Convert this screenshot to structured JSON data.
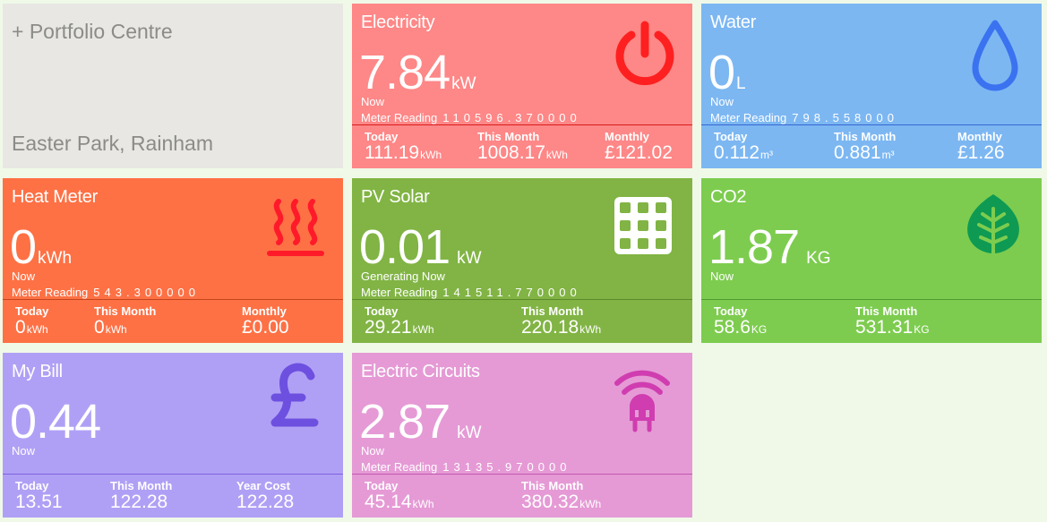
{
  "portfolio": {
    "title": "+ Portfolio Centre",
    "site": "Easter Park, Rainham"
  },
  "electricity": {
    "title": "Electricity",
    "value": "7.84",
    "unit": "kW",
    "sub": "Now",
    "meter_label": "Meter Reading",
    "meter_value": "110596.370000",
    "today_label": "Today",
    "today_value": "111.19",
    "today_unit": "kWh",
    "month_label": "This Month",
    "month_value": "1008.17",
    "month_unit": "kWh",
    "third_label": "Monthly",
    "third_value": "£121.02",
    "icon": "power-icon",
    "accent": "#fe2020"
  },
  "water": {
    "title": "Water",
    "value": "0",
    "unit": "L",
    "sub": "Now",
    "meter_label": "Meter Reading",
    "meter_value": "798.558000",
    "today_label": "Today",
    "today_value": "0.112",
    "today_unit": "m³",
    "month_label": "This Month",
    "month_value": "0.881",
    "month_unit": "m³",
    "third_label": "Monthly",
    "third_value": "£1.26",
    "icon": "water-drop-icon",
    "accent": "#3a72f0"
  },
  "heat": {
    "title": "Heat Meter",
    "value": "0",
    "unit": "kWh",
    "sub": "Now",
    "meter_label": "Meter Reading",
    "meter_value": "543.300000",
    "today_label": "Today",
    "today_value": "0",
    "today_unit": "kWh",
    "month_label": "This Month",
    "month_value": "0",
    "month_unit": "kWh",
    "third_label": "Monthly",
    "third_value": "£0.00",
    "icon": "heat-icon",
    "accent": "#ff1a2a"
  },
  "solar": {
    "title": "PV Solar",
    "value": "0.01",
    "unit": "kW",
    "sub": "Generating Now",
    "meter_label": "Meter Reading",
    "meter_value": "141511.770000",
    "today_label": "Today",
    "today_value": "29.21",
    "today_unit": "kWh",
    "month_label": "This Month",
    "month_value": "220.18",
    "month_unit": "kWh",
    "icon": "solar-panel-icon",
    "accent": "#ffffff"
  },
  "co2": {
    "title": "CO2",
    "value": "1.87",
    "unit": "KG",
    "sub": "Now",
    "today_label": "Today",
    "today_value": "58.6",
    "today_unit": "KG",
    "month_label": "This Month",
    "month_value": "531.31",
    "month_unit": "KG",
    "icon": "leaf-icon",
    "accent": "#0e9a52"
  },
  "bill": {
    "title": "My Bill",
    "value": "0.44",
    "sub": "Now",
    "today_label": "Today",
    "today_value": "13.51",
    "month_label": "This Month",
    "month_value": "122.28",
    "third_label": "Year Cost",
    "third_value": "122.28",
    "icon": "pound-icon",
    "accent": "#6d50e0"
  },
  "circuits": {
    "title": "Electric Circuits",
    "value": "2.87",
    "unit": "kW",
    "sub": "Now",
    "meter_label": "Meter Reading",
    "meter_value": "13135.970000",
    "today_label": "Today",
    "today_value": "45.14",
    "today_unit": "kWh",
    "month_label": "This Month",
    "month_value": "380.32",
    "month_unit": "kWh",
    "icon": "plug-signal-icon",
    "accent": "#d03db0"
  }
}
